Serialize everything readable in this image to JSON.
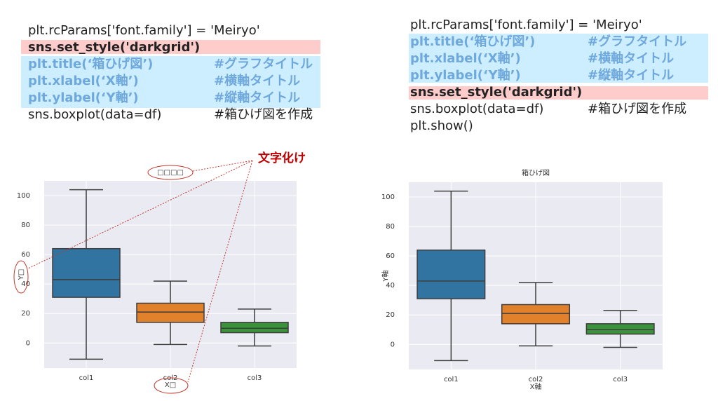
{
  "code_left": [
    {
      "code": "plt.rcParams['font.family'] = 'Meiryo'"
    },
    {
      "code": "sns.set_style('darkgrid')"
    },
    {
      "code": "plt.title(‘箱ひげ図’)",
      "comment": "#グラフタイトル"
    },
    {
      "code": "plt.xlabel(‘X軸’)",
      "comment": "#横軸タイトル"
    },
    {
      "code": "plt.ylabel(‘Y軸’)",
      "comment": "#縦軸タイトル"
    },
    {
      "code": "sns.boxplot(data=df)",
      "comment": "#箱ひげ図を作成"
    }
  ],
  "code_right": [
    {
      "code": "plt.rcParams['font.family'] = 'Meiryo'"
    },
    {
      "code": "plt.title(‘箱ひげ図’)",
      "comment": "#グラフタイトル"
    },
    {
      "code": "plt.xlabel(‘X軸’)",
      "comment": "#横軸タイトル"
    },
    {
      "code": "plt.ylabel(‘Y軸’)",
      "comment": "#縦軸タイトル"
    },
    {
      "code": "sns.set_style('darkgrid')"
    },
    {
      "code": "sns.boxplot(data=df)",
      "comment": "#箱ひげ図を作成"
    },
    {
      "code": "plt.show()"
    }
  ],
  "annotation": "文字化け",
  "chart_data": [
    {
      "type": "box",
      "title": "□□□□",
      "x_label": "X□",
      "y_label": "Y□",
      "categories": [
        "col1",
        "col2",
        "col3"
      ],
      "colors": [
        "#3274a1",
        "#e1812c",
        "#3a923a"
      ],
      "boxes": [
        {
          "min": -11,
          "q1": 31,
          "median": 43,
          "q3": 64,
          "max": 104
        },
        {
          "min": -1,
          "q1": 14,
          "median": 21,
          "q3": 27,
          "max": 42
        },
        {
          "min": -2,
          "q1": 7,
          "median": 10,
          "q3": 14,
          "max": 23
        }
      ],
      "ylim": [
        -17,
        110
      ],
      "yticks": [
        0,
        20,
        40,
        60,
        80,
        100
      ],
      "grid": true
    },
    {
      "type": "box",
      "title": "箱ひげ図",
      "x_label": "X軸",
      "y_label": "Y軸",
      "categories": [
        "col1",
        "col2",
        "col3"
      ],
      "colors": [
        "#3274a1",
        "#e1812c",
        "#3a923a"
      ],
      "boxes": [
        {
          "min": -11,
          "q1": 31,
          "median": 43,
          "q3": 64,
          "max": 104
        },
        {
          "min": -1,
          "q1": 14,
          "median": 21,
          "q3": 27,
          "max": 42
        },
        {
          "min": -2,
          "q1": 7,
          "median": 10,
          "q3": 14,
          "max": 23
        }
      ],
      "ylim": [
        -17,
        110
      ],
      "yticks": [
        0,
        20,
        40,
        60,
        80,
        100
      ],
      "grid": true
    }
  ]
}
